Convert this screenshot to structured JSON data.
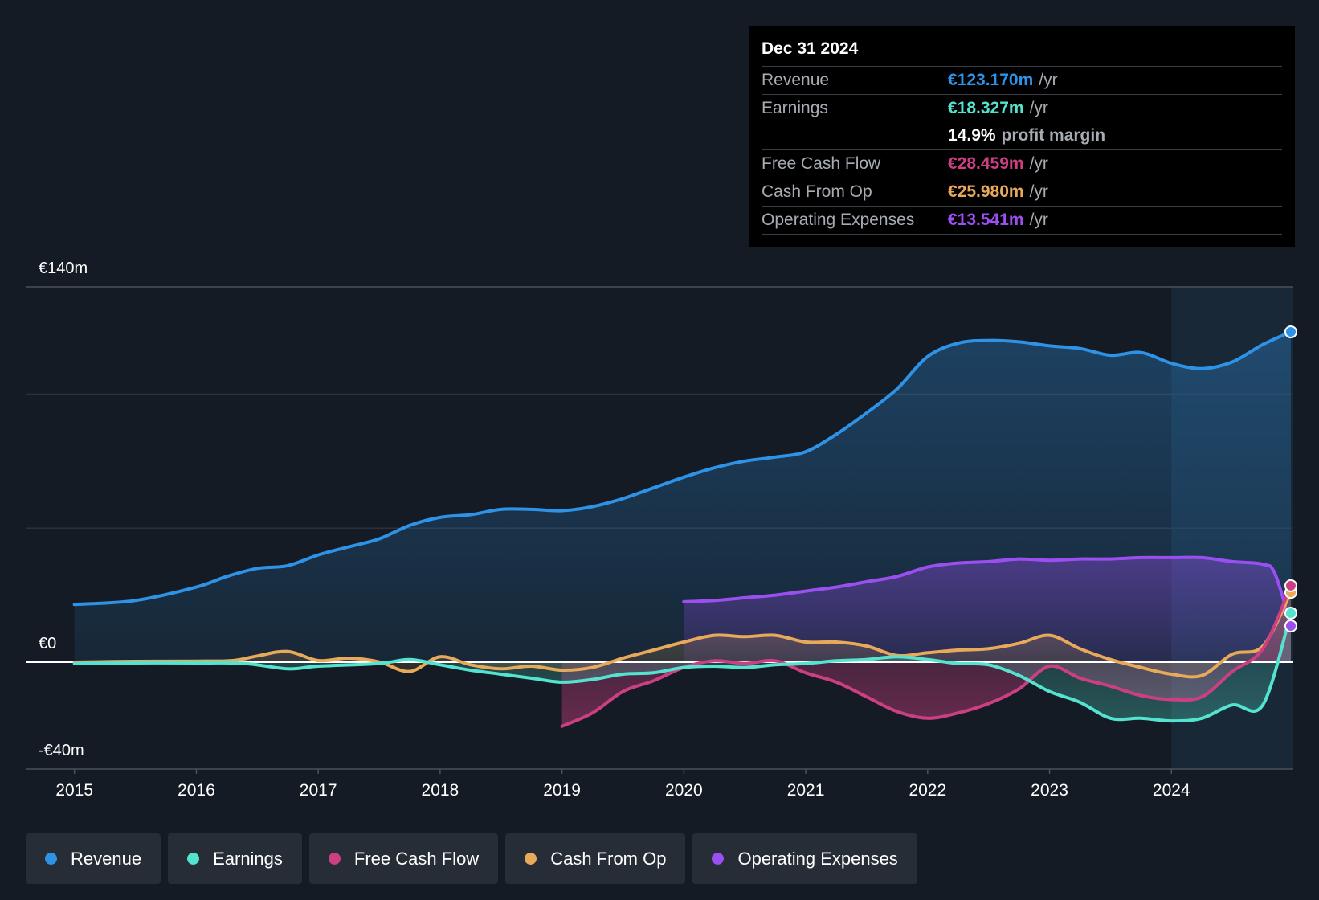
{
  "tooltip": {
    "date": "Dec 31 2024",
    "revenue": {
      "label": "Revenue",
      "value": "€123.170m",
      "unit": "/yr"
    },
    "earnings": {
      "label": "Earnings",
      "value": "€18.327m",
      "unit": "/yr"
    },
    "margin": {
      "value": "14.9%",
      "label": "profit margin"
    },
    "fcf": {
      "label": "Free Cash Flow",
      "value": "€28.459m",
      "unit": "/yr"
    },
    "cfo": {
      "label": "Cash From Op",
      "value": "€25.980m",
      "unit": "/yr"
    },
    "opex": {
      "label": "Operating Expenses",
      "value": "€13.541m",
      "unit": "/yr"
    }
  },
  "colors": {
    "revenue": "#2e93e6",
    "earnings": "#54e3cf",
    "fcf": "#cc3f82",
    "cfo": "#e8a95a",
    "opex": "#9b4ff0",
    "background": "#151b24"
  },
  "legend": [
    {
      "key": "revenue",
      "label": "Revenue"
    },
    {
      "key": "earnings",
      "label": "Earnings"
    },
    {
      "key": "fcf",
      "label": "Free Cash Flow"
    },
    {
      "key": "cfo",
      "label": "Cash From Op"
    },
    {
      "key": "opex",
      "label": "Operating Expenses"
    }
  ],
  "chart_data": {
    "type": "area",
    "title": "",
    "xlabel": "",
    "ylabel": "",
    "y_labels": {
      "top": "€140m",
      "zero": "€0",
      "bottom": "-€40m"
    },
    "ylim": [
      -40,
      140
    ],
    "xlim": [
      2014.6,
      2025.0
    ],
    "x_ticks": [
      2015,
      2016,
      2017,
      2018,
      2019,
      2020,
      2021,
      2022,
      2023,
      2024
    ],
    "highlight_start": 2024.0,
    "series": [
      {
        "key": "revenue",
        "name": "Revenue",
        "points": [
          [
            2015,
            21.5
          ],
          [
            2015.5,
            23
          ],
          [
            2016,
            28
          ],
          [
            2016.25,
            32
          ],
          [
            2016.5,
            35
          ],
          [
            2016.75,
            36
          ],
          [
            2017,
            40
          ],
          [
            2017.25,
            43
          ],
          [
            2017.5,
            46
          ],
          [
            2017.75,
            51
          ],
          [
            2018,
            54
          ],
          [
            2018.25,
            55
          ],
          [
            2018.5,
            57
          ],
          [
            2018.75,
            57
          ],
          [
            2019,
            56.5
          ],
          [
            2019.25,
            58
          ],
          [
            2019.5,
            61
          ],
          [
            2019.75,
            65
          ],
          [
            2020,
            69
          ],
          [
            2020.25,
            72.5
          ],
          [
            2020.5,
            75
          ],
          [
            2020.75,
            76.5
          ],
          [
            2021,
            78.5
          ],
          [
            2021.25,
            85
          ],
          [
            2021.5,
            93
          ],
          [
            2021.75,
            102
          ],
          [
            2022,
            114
          ],
          [
            2022.25,
            119
          ],
          [
            2022.5,
            120
          ],
          [
            2022.75,
            119.5
          ],
          [
            2023,
            118
          ],
          [
            2023.25,
            117
          ],
          [
            2023.5,
            114.5
          ],
          [
            2023.75,
            115.5
          ],
          [
            2024,
            111.5
          ],
          [
            2024.25,
            109.5
          ],
          [
            2024.5,
            112
          ],
          [
            2024.75,
            118.5
          ],
          [
            2024.98,
            123.2
          ]
        ]
      },
      {
        "key": "opex",
        "name": "Operating Expenses",
        "points": [
          [
            2020,
            22.5
          ],
          [
            2020.25,
            23
          ],
          [
            2020.5,
            24
          ],
          [
            2020.75,
            25
          ],
          [
            2021,
            26.5
          ],
          [
            2021.25,
            28
          ],
          [
            2021.5,
            30
          ],
          [
            2021.75,
            32
          ],
          [
            2022,
            35.5
          ],
          [
            2022.25,
            37
          ],
          [
            2022.5,
            37.5
          ],
          [
            2022.75,
            38.5
          ],
          [
            2023,
            38
          ],
          [
            2023.25,
            38.5
          ],
          [
            2023.5,
            38.5
          ],
          [
            2023.75,
            39
          ],
          [
            2024,
            39
          ],
          [
            2024.25,
            39
          ],
          [
            2024.5,
            37.5
          ],
          [
            2024.75,
            36.5
          ],
          [
            2024.85,
            33
          ],
          [
            2024.98,
            13.5
          ]
        ]
      },
      {
        "key": "cfo",
        "name": "Cash From Op",
        "points": [
          [
            2015,
            0
          ],
          [
            2015.5,
            0.3
          ],
          [
            2016,
            0.4
          ],
          [
            2016.3,
            0.6
          ],
          [
            2016.5,
            2.3
          ],
          [
            2016.75,
            4
          ],
          [
            2017,
            0.6
          ],
          [
            2017.25,
            1.5
          ],
          [
            2017.5,
            0.1
          ],
          [
            2017.75,
            -3.5
          ],
          [
            2018,
            2
          ],
          [
            2018.25,
            -1
          ],
          [
            2018.5,
            -2.5
          ],
          [
            2018.75,
            -1.5
          ],
          [
            2019,
            -3
          ],
          [
            2019.25,
            -2
          ],
          [
            2019.5,
            1.5
          ],
          [
            2019.75,
            4.5
          ],
          [
            2020,
            7.5
          ],
          [
            2020.25,
            10
          ],
          [
            2020.5,
            9.5
          ],
          [
            2020.75,
            10
          ],
          [
            2021,
            7.5
          ],
          [
            2021.25,
            7.5
          ],
          [
            2021.5,
            6
          ],
          [
            2021.75,
            2.5
          ],
          [
            2022,
            3.5
          ],
          [
            2022.25,
            4.5
          ],
          [
            2022.5,
            5
          ],
          [
            2022.75,
            7
          ],
          [
            2023,
            10
          ],
          [
            2023.25,
            5
          ],
          [
            2023.5,
            1
          ],
          [
            2023.75,
            -2
          ],
          [
            2024,
            -4.5
          ],
          [
            2024.25,
            -5
          ],
          [
            2024.5,
            3
          ],
          [
            2024.75,
            6
          ],
          [
            2024.98,
            26
          ]
        ]
      },
      {
        "key": "fcf",
        "name": "Free Cash Flow",
        "points": [
          [
            2019,
            -24
          ],
          [
            2019.25,
            -19
          ],
          [
            2019.5,
            -11
          ],
          [
            2019.75,
            -7
          ],
          [
            2020,
            -2
          ],
          [
            2020.25,
            0.5
          ],
          [
            2020.5,
            -0.5
          ],
          [
            2020.75,
            0.5
          ],
          [
            2021,
            -4
          ],
          [
            2021.25,
            -7.5
          ],
          [
            2021.5,
            -13
          ],
          [
            2021.75,
            -18.5
          ],
          [
            2022,
            -21
          ],
          [
            2022.25,
            -19
          ],
          [
            2022.5,
            -15.5
          ],
          [
            2022.75,
            -10
          ],
          [
            2023,
            -1.5
          ],
          [
            2023.25,
            -6
          ],
          [
            2023.5,
            -9
          ],
          [
            2023.75,
            -12.5
          ],
          [
            2024,
            -14
          ],
          [
            2024.25,
            -13
          ],
          [
            2024.5,
            -3.5
          ],
          [
            2024.75,
            5
          ],
          [
            2024.98,
            28.5
          ]
        ]
      },
      {
        "key": "earnings",
        "name": "Earnings",
        "points": [
          [
            2015,
            -0.5
          ],
          [
            2015.5,
            -0.3
          ],
          [
            2016,
            -0.3
          ],
          [
            2016.4,
            -0.5
          ],
          [
            2016.75,
            -2.5
          ],
          [
            2017,
            -1.5
          ],
          [
            2017.5,
            -0.5
          ],
          [
            2017.75,
            1
          ],
          [
            2018,
            -1
          ],
          [
            2018.25,
            -3
          ],
          [
            2018.5,
            -4.5
          ],
          [
            2018.75,
            -6
          ],
          [
            2019,
            -7.5
          ],
          [
            2019.25,
            -6.5
          ],
          [
            2019.5,
            -4.5
          ],
          [
            2019.75,
            -4
          ],
          [
            2020,
            -2
          ],
          [
            2020.25,
            -1.5
          ],
          [
            2020.5,
            -2
          ],
          [
            2020.75,
            -1
          ],
          [
            2021,
            -0.5
          ],
          [
            2021.25,
            0.5
          ],
          [
            2021.5,
            1
          ],
          [
            2021.75,
            2
          ],
          [
            2022,
            1
          ],
          [
            2022.25,
            -0.5
          ],
          [
            2022.5,
            -1
          ],
          [
            2022.75,
            -5
          ],
          [
            2023,
            -11
          ],
          [
            2023.25,
            -15
          ],
          [
            2023.5,
            -21
          ],
          [
            2023.75,
            -21
          ],
          [
            2024,
            -22
          ],
          [
            2024.25,
            -21
          ],
          [
            2024.5,
            -16
          ],
          [
            2024.75,
            -16
          ],
          [
            2024.98,
            18.3
          ]
        ]
      }
    ]
  }
}
